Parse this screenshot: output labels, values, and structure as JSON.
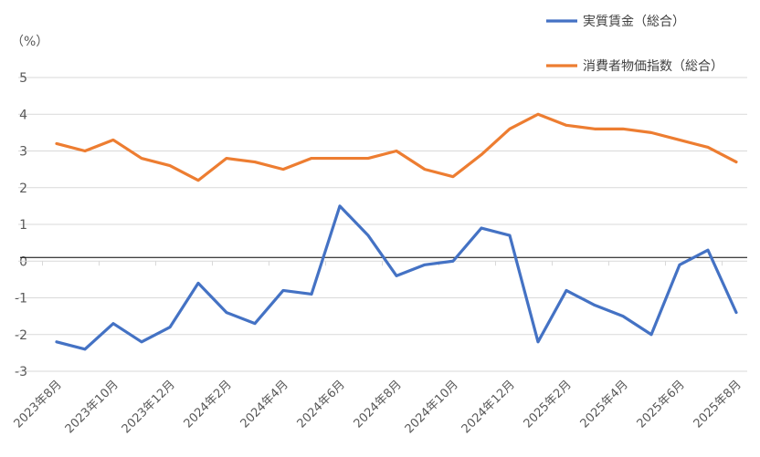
{
  "chart_data": {
    "type": "line",
    "title": "",
    "ylabel": "（%）",
    "xlabel": "",
    "ylim": [
      -3,
      5
    ],
    "yticks": [
      5,
      4,
      3,
      2,
      1,
      0,
      -1,
      -2,
      -3
    ],
    "grid": true,
    "legend_position": "top-right",
    "x": [
      "2023年8月",
      "2023年9月",
      "2023年10月",
      "2023年11月",
      "2023年12月",
      "2024年1月",
      "2024年2月",
      "2024年3月",
      "2024年4月",
      "2024年5月",
      "2024年6月",
      "2024年7月",
      "2024年8月",
      "2024年9月",
      "2024年10月",
      "2024年11月",
      "2024年12月",
      "2025年1月",
      "2025年2月",
      "2025年3月",
      "2025年4月",
      "2025年5月",
      "2025年6月",
      "2025年7月",
      "2025年8月"
    ],
    "xtick_labels": [
      "2023年8月",
      "2023年10月",
      "2023年12月",
      "2024年2月",
      "2024年4月",
      "2024年6月",
      "2024年8月",
      "2024年10月",
      "2024年12月",
      "2025年2月",
      "2025年4月",
      "2025年6月",
      "2025年8月"
    ],
    "reference_line": 0.1,
    "series": [
      {
        "name": "実質賃金（総合）",
        "color": "#4472C4",
        "values": [
          -2.2,
          -2.4,
          -1.7,
          -2.2,
          -1.8,
          -0.6,
          -1.4,
          -1.7,
          -0.8,
          -0.9,
          1.5,
          0.7,
          -0.4,
          -0.1,
          0.0,
          0.9,
          0.7,
          -2.2,
          -0.8,
          -1.2,
          -1.5,
          -2.0,
          -0.1,
          0.3,
          -1.4
        ]
      },
      {
        "name": "消費者物価指数（総合）",
        "color": "#ED7D31",
        "values": [
          3.2,
          3.0,
          3.3,
          2.8,
          2.6,
          2.2,
          2.8,
          2.7,
          2.5,
          2.8,
          2.8,
          2.8,
          3.0,
          2.5,
          2.3,
          2.9,
          3.6,
          4.0,
          3.7,
          3.6,
          3.6,
          3.5,
          3.3,
          3.1,
          2.7
        ]
      }
    ]
  }
}
